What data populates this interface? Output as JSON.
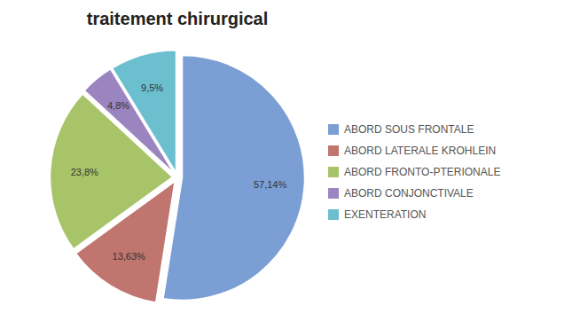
{
  "chart_data": {
    "type": "pie",
    "title": "traitement chirurgical",
    "categories": [
      "ABORD SOUS FRONTALE",
      "ABORD LATERALE KROHLEIN",
      "ABORD FRONTO-PTERIONALE",
      "ABORD CONJONCTIVALE",
      "EXENTERATION"
    ],
    "values": [
      57.14,
      13.63,
      23.8,
      4.8,
      9.5
    ],
    "value_labels": [
      "57,14%",
      "13,63%",
      "23,8%",
      "4,8%",
      "9,5%"
    ],
    "colors": [
      "#7B9FD4",
      "#C0756E",
      "#A8C468",
      "#9B85C0",
      "#6BBFCF"
    ],
    "data_labels": true,
    "legend": "right"
  }
}
